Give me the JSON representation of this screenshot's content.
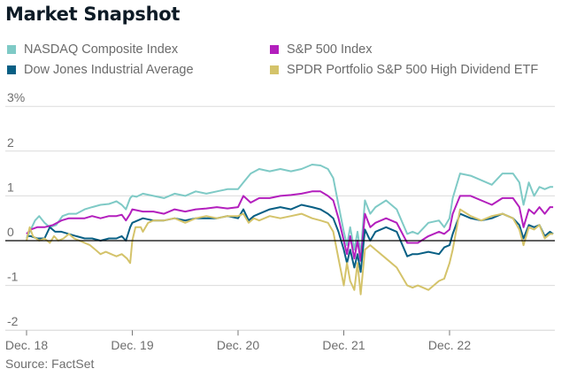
{
  "title": "Market Snapshot",
  "source": "Source: FactSet",
  "legend": [
    {
      "label": "NASDAQ Composite Index",
      "color": "#7fcac6"
    },
    {
      "label": "S&P 500 Index",
      "color": "#b31fbd"
    },
    {
      "label": "Dow Jones Industrial Average",
      "color": "#085f84"
    },
    {
      "label": "SPDR Portfolio S&P 500 High Dividend ETF",
      "color": "#d4c36a"
    }
  ],
  "chart_data": {
    "type": "line",
    "title": "Market Snapshot",
    "xlabel": "",
    "ylabel": "",
    "x_unit": "years since Dec. 18",
    "xlim": [
      0,
      5
    ],
    "ylim": [
      -2,
      3
    ],
    "yticks": [
      -2,
      -1,
      0,
      1,
      2,
      3
    ],
    "ytick_labels": [
      "-2",
      "-1",
      "0",
      "1",
      "2",
      "3%"
    ],
    "xticks": [
      0,
      1,
      2,
      3,
      4
    ],
    "xtick_labels": [
      "Dec. 18",
      "Dec. 19",
      "Dec. 20",
      "Dec. 21",
      "Dec. 22"
    ],
    "grid": true,
    "zero_line": true,
    "legend_position": "top",
    "series": [
      {
        "name": "NASDAQ Composite Index",
        "color": "#7fcac6",
        "x": [
          0,
          0.04,
          0.08,
          0.12,
          0.17,
          0.22,
          0.28,
          0.34,
          0.4,
          0.47,
          0.55,
          0.62,
          0.7,
          0.78,
          0.85,
          0.9,
          0.94,
          0.98,
          1.0,
          1.04,
          1.1,
          1.2,
          1.3,
          1.4,
          1.5,
          1.6,
          1.7,
          1.8,
          1.9,
          2.0,
          2.05,
          2.12,
          2.2,
          2.3,
          2.4,
          2.5,
          2.6,
          2.7,
          2.78,
          2.85,
          2.9,
          2.95,
          3.0,
          3.03,
          3.06,
          3.1,
          3.13,
          3.16,
          3.2,
          3.25,
          3.3,
          3.4,
          3.5,
          3.6,
          3.65,
          3.7,
          3.8,
          3.9,
          3.95,
          4.0,
          4.03,
          4.1,
          4.2,
          4.3,
          4.4,
          4.5,
          4.6,
          4.66,
          4.7,
          4.75,
          4.8,
          4.85,
          4.9,
          4.95,
          4.98
        ],
        "y": [
          0.05,
          0.25,
          0.45,
          0.55,
          0.4,
          0.3,
          0.35,
          0.55,
          0.6,
          0.6,
          0.7,
          0.75,
          0.8,
          0.82,
          0.88,
          0.8,
          0.7,
          0.95,
          1.0,
          0.98,
          1.05,
          1.0,
          0.95,
          1.05,
          1.0,
          1.1,
          1.05,
          1.1,
          1.15,
          1.15,
          1.3,
          1.5,
          1.6,
          1.55,
          1.6,
          1.55,
          1.6,
          1.7,
          1.68,
          1.6,
          1.4,
          0.8,
          0.2,
          -0.1,
          0.3,
          -0.2,
          0.2,
          -0.3,
          0.9,
          0.6,
          0.75,
          0.9,
          0.7,
          0.15,
          0.2,
          0.15,
          0.4,
          0.45,
          0.3,
          0.5,
          0.95,
          1.5,
          1.45,
          1.35,
          1.25,
          1.5,
          1.5,
          1.3,
          0.8,
          1.3,
          1.0,
          1.2,
          1.15,
          1.2,
          1.2
        ]
      },
      {
        "name": "S&P 500 Index",
        "color": "#b31fbd",
        "x": [
          0,
          0.04,
          0.1,
          0.17,
          0.25,
          0.33,
          0.4,
          0.47,
          0.55,
          0.62,
          0.7,
          0.78,
          0.85,
          0.9,
          0.94,
          0.98,
          1.0,
          1.1,
          1.2,
          1.3,
          1.4,
          1.5,
          1.6,
          1.7,
          1.8,
          1.9,
          2.0,
          2.05,
          2.12,
          2.2,
          2.3,
          2.4,
          2.5,
          2.6,
          2.7,
          2.78,
          2.85,
          2.9,
          2.95,
          3.0,
          3.03,
          3.06,
          3.1,
          3.13,
          3.16,
          3.2,
          3.25,
          3.3,
          3.4,
          3.5,
          3.6,
          3.65,
          3.7,
          3.8,
          3.9,
          3.95,
          4.0,
          4.03,
          4.1,
          4.2,
          4.3,
          4.4,
          4.5,
          4.6,
          4.66,
          4.7,
          4.75,
          4.8,
          4.85,
          4.9,
          4.95,
          4.98
        ],
        "y": [
          0.15,
          0.25,
          0.3,
          0.3,
          0.35,
          0.45,
          0.5,
          0.5,
          0.5,
          0.55,
          0.5,
          0.55,
          0.55,
          0.58,
          0.45,
          0.6,
          0.7,
          0.65,
          0.65,
          0.6,
          0.7,
          0.65,
          0.7,
          0.72,
          0.75,
          0.72,
          0.75,
          1.0,
          0.85,
          0.95,
          0.95,
          1.0,
          1.02,
          1.05,
          1.1,
          1.1,
          1.0,
          0.9,
          0.5,
          0.0,
          -0.3,
          0.1,
          -0.4,
          0.0,
          -0.45,
          0.6,
          0.3,
          0.4,
          0.5,
          0.4,
          -0.05,
          -0.05,
          -0.05,
          0.1,
          0.2,
          0.15,
          0.25,
          0.6,
          1.0,
          1.0,
          0.9,
          0.8,
          0.95,
          0.95,
          0.75,
          0.3,
          0.7,
          0.6,
          0.75,
          0.6,
          0.75,
          0.75
        ]
      },
      {
        "name": "Dow Jones Industrial Average",
        "color": "#085f84",
        "x": [
          0,
          0.04,
          0.1,
          0.17,
          0.22,
          0.27,
          0.33,
          0.4,
          0.47,
          0.55,
          0.62,
          0.7,
          0.78,
          0.85,
          0.9,
          0.94,
          0.98,
          1.0,
          1.1,
          1.2,
          1.3,
          1.4,
          1.5,
          1.6,
          1.7,
          1.8,
          1.9,
          2.0,
          2.05,
          2.1,
          2.15,
          2.2,
          2.3,
          2.4,
          2.5,
          2.6,
          2.7,
          2.78,
          2.85,
          2.9,
          2.95,
          3.0,
          3.03,
          3.06,
          3.1,
          3.13,
          3.16,
          3.2,
          3.25,
          3.3,
          3.4,
          3.5,
          3.6,
          3.65,
          3.7,
          3.8,
          3.9,
          3.95,
          4.0,
          4.03,
          4.1,
          4.2,
          4.3,
          4.4,
          4.5,
          4.6,
          4.66,
          4.7,
          4.75,
          4.8,
          4.85,
          4.9,
          4.95,
          4.98
        ],
        "y": [
          0.1,
          0.1,
          0.05,
          0.05,
          0.3,
          0.2,
          0.2,
          0.15,
          0.1,
          0.05,
          0.05,
          0.0,
          0.05,
          0.05,
          0.1,
          0.0,
          0.3,
          0.4,
          0.5,
          0.45,
          0.45,
          0.5,
          0.45,
          0.5,
          0.5,
          0.5,
          0.55,
          0.5,
          0.7,
          0.45,
          0.55,
          0.6,
          0.7,
          0.75,
          0.7,
          0.8,
          0.75,
          0.7,
          0.6,
          0.5,
          0.2,
          -0.2,
          -0.5,
          -0.2,
          -0.6,
          -0.3,
          -0.7,
          0.25,
          0.0,
          0.2,
          0.3,
          0.2,
          -0.35,
          -0.3,
          -0.3,
          -0.25,
          -0.3,
          -0.15,
          -0.1,
          0.15,
          0.6,
          0.5,
          0.45,
          0.5,
          0.6,
          0.5,
          0.35,
          0.05,
          0.35,
          0.3,
          0.35,
          0.1,
          0.2,
          0.15
        ]
      },
      {
        "name": "SPDR Portfolio S&P 500 High Dividend ETF",
        "color": "#d4c36a",
        "x": [
          0,
          0.03,
          0.06,
          0.09,
          0.12,
          0.17,
          0.22,
          0.26,
          0.3,
          0.35,
          0.4,
          0.45,
          0.5,
          0.55,
          0.6,
          0.65,
          0.7,
          0.75,
          0.8,
          0.85,
          0.9,
          0.95,
          0.98,
          1.0,
          1.03,
          1.08,
          1.1,
          1.15,
          1.2,
          1.3,
          1.4,
          1.5,
          1.6,
          1.7,
          1.8,
          1.9,
          2.0,
          2.05,
          2.1,
          2.15,
          2.2,
          2.3,
          2.4,
          2.5,
          2.6,
          2.7,
          2.78,
          2.85,
          2.9,
          2.95,
          3.0,
          3.03,
          3.06,
          3.1,
          3.13,
          3.16,
          3.2,
          3.25,
          3.3,
          3.4,
          3.5,
          3.6,
          3.65,
          3.7,
          3.8,
          3.9,
          3.95,
          4.0,
          4.03,
          4.1,
          4.2,
          4.3,
          4.4,
          4.5,
          4.6,
          4.66,
          4.7,
          4.75,
          4.8,
          4.85,
          4.9,
          4.95,
          4.98
        ],
        "y": [
          0.0,
          0.3,
          0.1,
          0.05,
          0.0,
          0.05,
          -0.05,
          0.1,
          0.0,
          0.05,
          0.15,
          0.05,
          0.0,
          -0.05,
          -0.1,
          -0.2,
          -0.3,
          -0.25,
          -0.3,
          -0.35,
          -0.3,
          -0.4,
          -0.5,
          0.0,
          0.3,
          0.3,
          0.2,
          0.4,
          0.45,
          0.45,
          0.5,
          0.4,
          0.5,
          0.55,
          0.5,
          0.55,
          0.55,
          0.6,
          0.4,
          0.5,
          0.45,
          0.55,
          0.5,
          0.55,
          0.6,
          0.5,
          0.45,
          0.4,
          0.2,
          -0.4,
          -1.0,
          -0.5,
          -0.9,
          -1.1,
          -0.5,
          -1.2,
          -0.2,
          -0.1,
          -0.2,
          -0.4,
          -0.6,
          -1.0,
          -1.05,
          -1.0,
          -1.1,
          -0.9,
          -0.85,
          -0.5,
          -0.2,
          0.7,
          0.55,
          0.45,
          0.55,
          0.6,
          0.5,
          0.25,
          -0.1,
          0.3,
          0.25,
          0.35,
          0.05,
          0.15,
          0.15
        ]
      }
    ]
  }
}
